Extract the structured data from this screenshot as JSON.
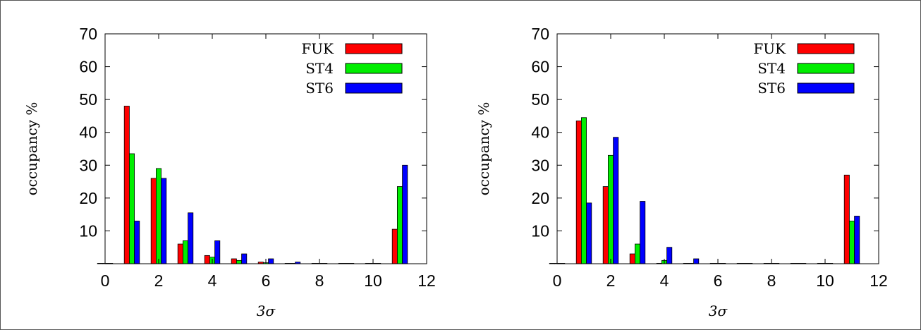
{
  "chart_data": [
    {
      "type": "bar",
      "xlabel": "3σ",
      "ylabel": "occupancy %",
      "xlim": [
        0,
        12
      ],
      "ylim": [
        0,
        70
      ],
      "xticks": [
        0,
        2,
        4,
        6,
        8,
        10,
        12
      ],
      "yticks": [
        10,
        20,
        30,
        40,
        50,
        60,
        70
      ],
      "grid": false,
      "legend_position": "top-right",
      "categories": [
        0,
        1,
        2,
        3,
        4,
        5,
        6,
        7,
        8,
        9,
        10,
        11
      ],
      "series": [
        {
          "name": "FUK",
          "color": "#ff0000",
          "values": [
            0,
            48,
            26,
            6,
            2.5,
            1.5,
            0.5,
            0,
            0,
            0,
            0,
            10.5
          ]
        },
        {
          "name": "ST4",
          "color": "#00ee00",
          "values": [
            0,
            33.5,
            29,
            7,
            2,
            1,
            0.3,
            0,
            0,
            0,
            0,
            23.5
          ]
        },
        {
          "name": "ST6",
          "color": "#0000ff",
          "values": [
            0,
            13,
            26,
            15.5,
            7,
            3,
            1.5,
            0.5,
            0,
            0,
            0,
            30
          ]
        }
      ]
    },
    {
      "type": "bar",
      "xlabel": "3σ",
      "ylabel": "occupancy %",
      "xlim": [
        0,
        12
      ],
      "ylim": [
        0,
        70
      ],
      "xticks": [
        0,
        2,
        4,
        6,
        8,
        10,
        12
      ],
      "yticks": [
        10,
        20,
        30,
        40,
        50,
        60,
        70
      ],
      "grid": false,
      "legend_position": "top-right",
      "categories": [
        0,
        1,
        2,
        3,
        4,
        5,
        6,
        7,
        8,
        9,
        10,
        11
      ],
      "series": [
        {
          "name": "FUK",
          "color": "#ff0000",
          "values": [
            0,
            43.5,
            23.5,
            3,
            0,
            0,
            0,
            0,
            0,
            0,
            0,
            27
          ]
        },
        {
          "name": "ST4",
          "color": "#00ee00",
          "values": [
            0,
            44.5,
            33,
            6,
            1,
            0,
            0,
            0,
            0,
            0,
            0,
            13
          ]
        },
        {
          "name": "ST6",
          "color": "#0000ff",
          "values": [
            0,
            18.5,
            38.5,
            19,
            5,
            1.5,
            0,
            0,
            0,
            0,
            0,
            14.5
          ]
        }
      ]
    }
  ]
}
